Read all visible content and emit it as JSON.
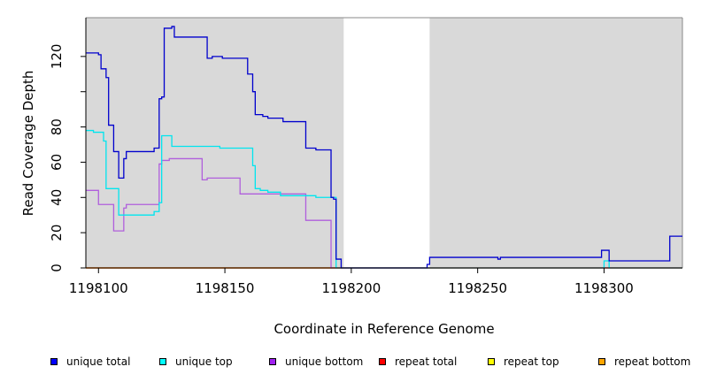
{
  "chart_data": {
    "type": "line",
    "title": "",
    "xlabel": "Coordinate in Reference Genome",
    "ylabel": "Read Coverage Depth",
    "xlim": [
      1198095,
      1198331
    ],
    "ylim": [
      0,
      142
    ],
    "xticks": [
      1198100,
      1198150,
      1198200,
      1198250,
      1198300
    ],
    "yticks": [
      0,
      20,
      40,
      60,
      80,
      100,
      120
    ],
    "ytick_labels": [
      "0",
      "20",
      "40",
      "60",
      "80",
      "",
      "120"
    ],
    "shaded_regions": [
      {
        "from": 1198095,
        "to": 1198197,
        "color": "#d9d9d9"
      },
      {
        "from": 1198231,
        "to": 1198331,
        "color": "#d9d9d9"
      }
    ],
    "series": [
      {
        "name": "unique total",
        "color": "#0000cd",
        "points": [
          [
            1198095,
            122
          ],
          [
            1198100,
            122
          ],
          [
            1198100,
            121
          ],
          [
            1198101,
            121
          ],
          [
            1198101,
            113
          ],
          [
            1198103,
            113
          ],
          [
            1198103,
            108
          ],
          [
            1198104,
            108
          ],
          [
            1198104,
            81
          ],
          [
            1198106,
            81
          ],
          [
            1198106,
            66
          ],
          [
            1198108,
            66
          ],
          [
            1198108,
            51
          ],
          [
            1198110,
            51
          ],
          [
            1198110,
            62
          ],
          [
            1198111,
            62
          ],
          [
            1198111,
            66
          ],
          [
            1198122,
            66
          ],
          [
            1198122,
            68
          ],
          [
            1198124,
            68
          ],
          [
            1198124,
            96
          ],
          [
            1198125,
            96
          ],
          [
            1198125,
            97
          ],
          [
            1198126,
            97
          ],
          [
            1198126,
            136
          ],
          [
            1198129,
            136
          ],
          [
            1198129,
            137
          ],
          [
            1198130,
            137
          ],
          [
            1198130,
            131
          ],
          [
            1198143,
            131
          ],
          [
            1198143,
            119
          ],
          [
            1198145,
            119
          ],
          [
            1198145,
            120
          ],
          [
            1198149,
            120
          ],
          [
            1198149,
            119
          ],
          [
            1198159,
            119
          ],
          [
            1198159,
            110
          ],
          [
            1198161,
            110
          ],
          [
            1198161,
            100
          ],
          [
            1198162,
            100
          ],
          [
            1198162,
            87
          ],
          [
            1198165,
            87
          ],
          [
            1198165,
            86
          ],
          [
            1198167,
            86
          ],
          [
            1198167,
            85
          ],
          [
            1198173,
            85
          ],
          [
            1198173,
            83
          ],
          [
            1198182,
            83
          ],
          [
            1198182,
            68
          ],
          [
            1198186,
            68
          ],
          [
            1198186,
            67
          ],
          [
            1198192,
            67
          ],
          [
            1198192,
            40
          ],
          [
            1198193,
            40
          ],
          [
            1198193,
            39
          ],
          [
            1198194,
            39
          ],
          [
            1198194,
            5
          ],
          [
            1198196,
            5
          ],
          [
            1198196,
            0
          ],
          [
            1198230,
            0
          ],
          [
            1198230,
            2
          ],
          [
            1198231,
            2
          ],
          [
            1198231,
            6
          ],
          [
            1198258,
            6
          ],
          [
            1198258,
            5
          ],
          [
            1198259,
            5
          ],
          [
            1198259,
            6
          ],
          [
            1198299,
            6
          ],
          [
            1198299,
            10
          ],
          [
            1198302,
            10
          ],
          [
            1198302,
            4
          ],
          [
            1198326,
            4
          ],
          [
            1198326,
            18
          ],
          [
            1198331,
            18
          ]
        ]
      },
      {
        "name": "unique top",
        "color": "#00e5ee",
        "points": [
          [
            1198095,
            78
          ],
          [
            1198098,
            78
          ],
          [
            1198098,
            77
          ],
          [
            1198102,
            77
          ],
          [
            1198102,
            72
          ],
          [
            1198103,
            72
          ],
          [
            1198103,
            45
          ],
          [
            1198108,
            45
          ],
          [
            1198108,
            30
          ],
          [
            1198122,
            30
          ],
          [
            1198122,
            32
          ],
          [
            1198124,
            32
          ],
          [
            1198124,
            37
          ],
          [
            1198125,
            37
          ],
          [
            1198125,
            75
          ],
          [
            1198129,
            75
          ],
          [
            1198129,
            69
          ],
          [
            1198148,
            69
          ],
          [
            1198148,
            68
          ],
          [
            1198161,
            68
          ],
          [
            1198161,
            58
          ],
          [
            1198162,
            58
          ],
          [
            1198162,
            45
          ],
          [
            1198164,
            45
          ],
          [
            1198164,
            44
          ],
          [
            1198167,
            44
          ],
          [
            1198167,
            43
          ],
          [
            1198172,
            43
          ],
          [
            1198172,
            41
          ],
          [
            1198186,
            41
          ],
          [
            1198186,
            40
          ],
          [
            1198194,
            40
          ],
          [
            1198194,
            0
          ],
          [
            1198300,
            0
          ],
          [
            1198300,
            4
          ],
          [
            1198302,
            4
          ],
          [
            1198302,
            0
          ],
          [
            1198331,
            0
          ]
        ]
      },
      {
        "name": "unique bottom",
        "color": "#b05fdc",
        "points": [
          [
            1198095,
            44
          ],
          [
            1198100,
            44
          ],
          [
            1198100,
            36
          ],
          [
            1198106,
            36
          ],
          [
            1198106,
            21
          ],
          [
            1198110,
            21
          ],
          [
            1198110,
            34
          ],
          [
            1198111,
            34
          ],
          [
            1198111,
            36
          ],
          [
            1198124,
            36
          ],
          [
            1198124,
            59
          ],
          [
            1198125,
            59
          ],
          [
            1198125,
            61
          ],
          [
            1198128,
            61
          ],
          [
            1198128,
            62
          ],
          [
            1198141,
            62
          ],
          [
            1198141,
            50
          ],
          [
            1198143,
            50
          ],
          [
            1198143,
            51
          ],
          [
            1198156,
            51
          ],
          [
            1198156,
            42
          ],
          [
            1198182,
            42
          ],
          [
            1198182,
            27
          ],
          [
            1198192,
            27
          ],
          [
            1198192,
            0
          ],
          [
            1198331,
            0
          ]
        ]
      },
      {
        "name": "repeat total",
        "color": "#ff0000",
        "points": [
          [
            1198095,
            0
          ],
          [
            1198331,
            0
          ]
        ]
      },
      {
        "name": "repeat top",
        "color": "#ffff00",
        "points": [
          [
            1198095,
            0
          ],
          [
            1198331,
            0
          ]
        ]
      },
      {
        "name": "repeat bottom",
        "color": "#ff8c00",
        "points": [
          [
            1198095,
            0
          ],
          [
            1198197,
            0
          ]
        ]
      }
    ],
    "legend": {
      "placement": "bottom",
      "entries": [
        {
          "label": "unique total",
          "color": "#0000ff"
        },
        {
          "label": "unique top",
          "color": "#00ffff"
        },
        {
          "label": "unique bottom",
          "color": "#a020f0"
        },
        {
          "label": "repeat total",
          "color": "#ff0000"
        },
        {
          "label": "repeat top",
          "color": "#ffff00"
        },
        {
          "label": "repeat bottom",
          "color": "#ffa500"
        }
      ]
    }
  }
}
